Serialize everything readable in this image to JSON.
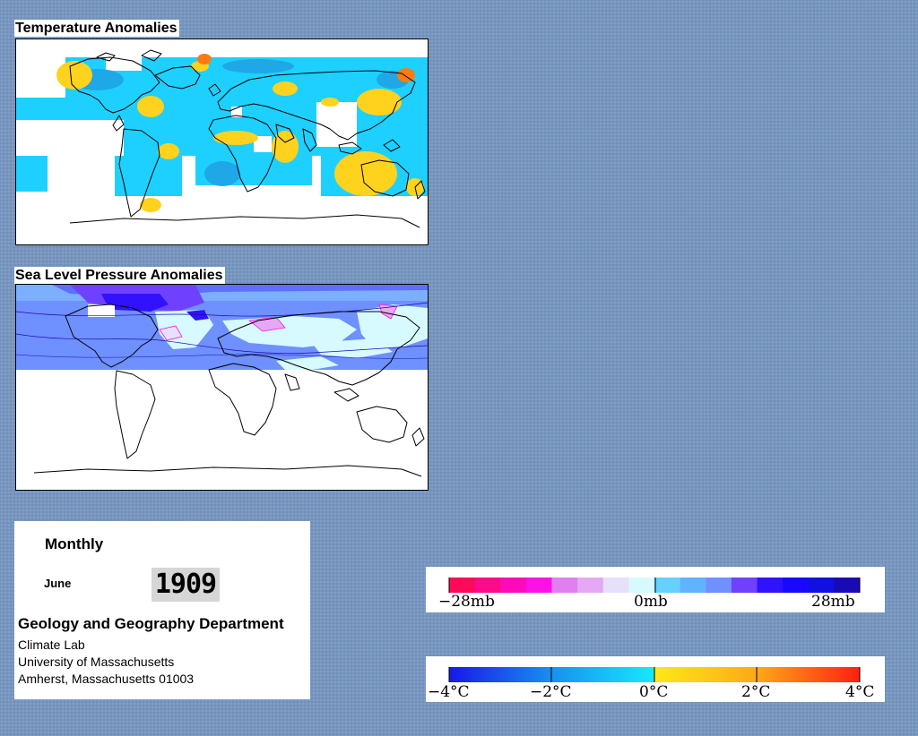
{
  "panels": {
    "temperature": {
      "title": "Temperature Anomalies"
    },
    "pressure": {
      "title": "Sea Level Pressure Anomalies"
    }
  },
  "info": {
    "period": "Monthly",
    "month": "June",
    "year": "1909",
    "department": "Geology and Geography Department",
    "lab": "Climate Lab",
    "university": "University of Massachusetts",
    "address": "Amherst, Massachusetts 01003"
  },
  "legends": {
    "pressure": {
      "labels": [
        "−28mb",
        "0mb",
        "28mb"
      ],
      "colors": [
        "#ff0a5a",
        "#ff0a8a",
        "#ff0ab8",
        "#ff10e6",
        "#e080f0",
        "#e4a8f4",
        "#e6e0fa",
        "#d6faff",
        "#66d0ff",
        "#60b4ff",
        "#6f90ff",
        "#7040ff",
        "#3012ff",
        "#1808ff",
        "#1010e0",
        "#1a0ab4"
      ]
    },
    "temperature": {
      "labels": [
        "−4°C",
        "−2°C",
        "0°C",
        "2°C",
        "4°C"
      ]
    }
  },
  "colors": {
    "background": "#7796bf",
    "cold": "#1ea8e8",
    "cool": "#1ed0ff",
    "warm": "#ffd21e",
    "hot": "#ff7a10",
    "slp_blue": "#6f90ff",
    "slp_light": "#d6faff"
  }
}
